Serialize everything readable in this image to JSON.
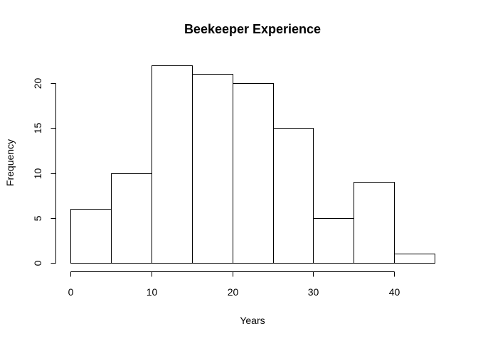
{
  "chart_data": {
    "type": "bar",
    "title": "Beekeeper Experience",
    "xlabel": "Years",
    "ylabel": "Frequency",
    "bins": [
      {
        "start": 0,
        "end": 5,
        "count": 6
      },
      {
        "start": 5,
        "end": 10,
        "count": 10
      },
      {
        "start": 10,
        "end": 15,
        "count": 22
      },
      {
        "start": 15,
        "end": 20,
        "count": 21
      },
      {
        "start": 20,
        "end": 25,
        "count": 20
      },
      {
        "start": 25,
        "end": 30,
        "count": 15
      },
      {
        "start": 30,
        "end": 35,
        "count": 5
      },
      {
        "start": 35,
        "end": 40,
        "count": 9
      },
      {
        "start": 40,
        "end": 45,
        "count": 1
      }
    ],
    "xlim": [
      0,
      45
    ],
    "ylim": [
      0,
      22
    ],
    "x_ticks": [
      "0",
      "10",
      "20",
      "30",
      "40"
    ],
    "y_ticks": [
      "0",
      "5",
      "10",
      "15",
      "20"
    ],
    "grid": false,
    "bar_fill": "#ffffff",
    "bar_stroke": "#000000"
  }
}
